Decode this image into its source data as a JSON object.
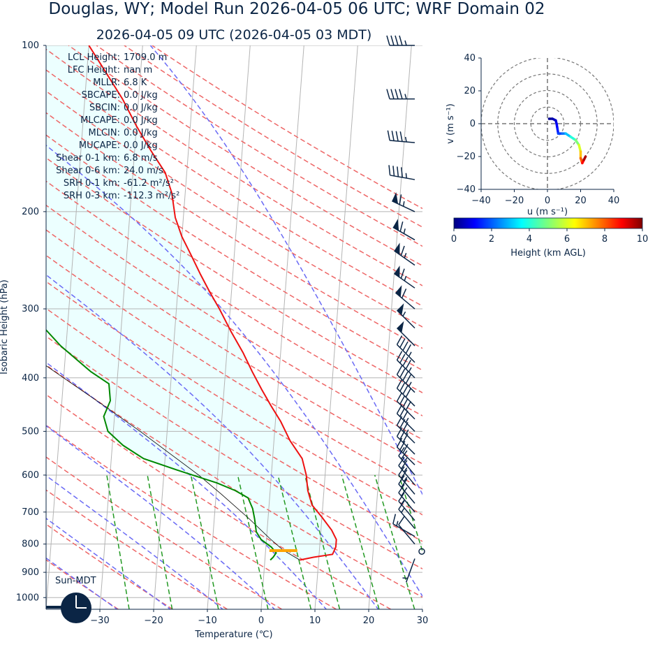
{
  "title": "Douglas, WY; Model Run 2026-04-05 06 UTC; WRF Domain 02",
  "subtitle": "2026-04-05 09 UTC  (2026-04-05 03 MDT)",
  "stats": [
    {
      "label": "LCL Height:",
      "value": "1709.0 m"
    },
    {
      "label": "LFC Height:",
      "value": "nan m"
    },
    {
      "label": "MLLR:",
      "value": "6.8 K"
    },
    {
      "label": "SBCAPE:",
      "value": "0.0 J/kg"
    },
    {
      "label": "SBCIN:",
      "value": "0.0 J/kg"
    },
    {
      "label": "MLCAPE:",
      "value": "0.0 J/kg"
    },
    {
      "label": "MLCIN:",
      "value": "0.0 J/kg"
    },
    {
      "label": "MUCAPE:",
      "value": "0.0 J/kg"
    },
    {
      "label": "Shear 0-1 km:",
      "value": "6.8 m/s"
    },
    {
      "label": "Shear 0-6 km:",
      "value": "24.0 m/s"
    },
    {
      "label": "SRH 0-1 km:",
      "value": "-61.2 m²/s²"
    },
    {
      "label": "SRH 0-3 km:",
      "value": "-112.3 m²/s²"
    }
  ],
  "sun_label": "Sun-MDT",
  "chart_data": [
    {
      "type": "line",
      "name": "skew-t",
      "xlabel": "Temperature (℃)",
      "ylabel": "Isobaric Height (hPa)",
      "xlim": [
        -40,
        30
      ],
      "ylim": [
        1050,
        100
      ],
      "y_scale": "log",
      "skew_per_decade": 60,
      "x_ticks": [
        -30,
        -20,
        -10,
        0,
        10,
        20,
        30
      ],
      "y_ticks": [
        100,
        200,
        300,
        400,
        500,
        600,
        700,
        800,
        900,
        1000
      ],
      "grid": true,
      "colors": {
        "temperature": "#ee1111",
        "dewpoint": "#008800",
        "parcel": "#000000",
        "cape_fill": "#ecffff",
        "lcl": "#ffa500",
        "dry_adiabat": "#ee6666",
        "moist_adiabat": "#6a6af5",
        "mixing_ratio": "#229922",
        "isotherm": "#b4b4b4"
      },
      "temperature": [
        {
          "p": 855,
          "t": 6.5
        },
        {
          "p": 845,
          "t": 9
        },
        {
          "p": 835,
          "t": 12.5
        },
        {
          "p": 810,
          "t": 13
        },
        {
          "p": 785,
          "t": 13
        },
        {
          "p": 755,
          "t": 12
        },
        {
          "p": 715,
          "t": 10
        },
        {
          "p": 680,
          "t": 8
        },
        {
          "p": 640,
          "t": 7
        },
        {
          "p": 600,
          "t": 6.5
        },
        {
          "p": 560,
          "t": 5.5
        },
        {
          "p": 520,
          "t": 3
        },
        {
          "p": 480,
          "t": 1
        },
        {
          "p": 450,
          "t": -1
        },
        {
          "p": 420,
          "t": -3
        },
        {
          "p": 390,
          "t": -5
        },
        {
          "p": 360,
          "t": -7
        },
        {
          "p": 330,
          "t": -9.5
        },
        {
          "p": 300,
          "t": -12
        },
        {
          "p": 280,
          "t": -14
        },
        {
          "p": 260,
          "t": -16
        },
        {
          "p": 240,
          "t": -18
        },
        {
          "p": 222,
          "t": -20
        },
        {
          "p": 205,
          "t": -21.5
        },
        {
          "p": 185,
          "t": -22.5
        },
        {
          "p": 170,
          "t": -24
        },
        {
          "p": 155,
          "t": -27
        },
        {
          "p": 140,
          "t": -30
        },
        {
          "p": 125,
          "t": -33
        },
        {
          "p": 110,
          "t": -37
        },
        {
          "p": 100,
          "t": -40
        }
      ],
      "dewpoint": [
        {
          "p": 855,
          "t": 1
        },
        {
          "p": 845,
          "t": 1.5
        },
        {
          "p": 830,
          "t": 2
        },
        {
          "p": 810,
          "t": 1
        },
        {
          "p": 785,
          "t": -1
        },
        {
          "p": 760,
          "t": -2
        },
        {
          "p": 720,
          "t": -2.5
        },
        {
          "p": 690,
          "t": -3
        },
        {
          "p": 660,
          "t": -4
        },
        {
          "p": 640,
          "t": -6.5
        },
        {
          "p": 620,
          "t": -10
        },
        {
          "p": 590,
          "t": -17
        },
        {
          "p": 560,
          "t": -24
        },
        {
          "p": 530,
          "t": -28
        },
        {
          "p": 500,
          "t": -31
        },
        {
          "p": 470,
          "t": -32
        },
        {
          "p": 440,
          "t": -31
        },
        {
          "p": 410,
          "t": -31.5
        },
        {
          "p": 390,
          "t": -35
        },
        {
          "p": 350,
          "t": -41
        },
        {
          "p": 320,
          "t": -45
        },
        {
          "p": 290,
          "t": -46.5
        },
        {
          "p": 260,
          "t": -48.5
        },
        {
          "p": 230,
          "t": -51.5
        },
        {
          "p": 210,
          "t": -53.5
        },
        {
          "p": 190,
          "t": -53.5
        },
        {
          "p": 170,
          "t": -55
        },
        {
          "p": 155,
          "t": -57.5
        },
        {
          "p": 140,
          "t": -59.5
        },
        {
          "p": 125,
          "t": -61.5
        },
        {
          "p": 110,
          "t": -64.5
        },
        {
          "p": 100,
          "t": -67
        }
      ],
      "parcel": [
        {
          "p": 855,
          "t": 6.5
        },
        {
          "p": 820,
          "t": 3.2
        },
        {
          "p": 780,
          "t": 0.5
        },
        {
          "p": 720,
          "t": -3.5
        },
        {
          "p": 650,
          "t": -9
        },
        {
          "p": 600,
          "t": -13.5
        },
        {
          "p": 550,
          "t": -19
        },
        {
          "p": 500,
          "t": -25
        },
        {
          "p": 450,
          "t": -32
        },
        {
          "p": 400,
          "t": -40
        },
        {
          "p": 350,
          "t": -49
        },
        {
          "p": 300,
          "t": -59
        },
        {
          "p": 260,
          "t": -68
        }
      ],
      "lcl_p": 822,
      "lcl_t": 3.3,
      "wind_barbs": [
        {
          "p": 100,
          "speed_kt": 45,
          "dir": 270
        },
        {
          "p": 125,
          "speed_kt": 45,
          "dir": 270
        },
        {
          "p": 150,
          "speed_kt": 45,
          "dir": 275
        },
        {
          "p": 175,
          "speed_kt": 45,
          "dir": 280
        },
        {
          "p": 200,
          "speed_kt": 65,
          "dir": 295
        },
        {
          "p": 225,
          "speed_kt": 65,
          "dir": 300
        },
        {
          "p": 250,
          "speed_kt": 65,
          "dir": 305
        },
        {
          "p": 275,
          "speed_kt": 65,
          "dir": 305
        },
        {
          "p": 300,
          "speed_kt": 60,
          "dir": 310
        },
        {
          "p": 325,
          "speed_kt": 55,
          "dir": 315
        },
        {
          "p": 350,
          "speed_kt": 50,
          "dir": 315
        },
        {
          "p": 375,
          "speed_kt": 45,
          "dir": 315
        },
        {
          "p": 400,
          "speed_kt": 45,
          "dir": 315
        },
        {
          "p": 425,
          "speed_kt": 45,
          "dir": 315
        },
        {
          "p": 450,
          "speed_kt": 40,
          "dir": 315
        },
        {
          "p": 475,
          "speed_kt": 40,
          "dir": 315
        },
        {
          "p": 500,
          "speed_kt": 35,
          "dir": 315
        },
        {
          "p": 525,
          "speed_kt": 35,
          "dir": 315
        },
        {
          "p": 550,
          "speed_kt": 30,
          "dir": 315
        },
        {
          "p": 575,
          "speed_kt": 30,
          "dir": 315
        },
        {
          "p": 600,
          "speed_kt": 25,
          "dir": 320
        },
        {
          "p": 625,
          "speed_kt": 25,
          "dir": 320
        },
        {
          "p": 650,
          "speed_kt": 25,
          "dir": 320
        },
        {
          "p": 675,
          "speed_kt": 20,
          "dir": 320
        },
        {
          "p": 700,
          "speed_kt": 20,
          "dir": 320
        },
        {
          "p": 725,
          "speed_kt": 15,
          "dir": 320
        },
        {
          "p": 750,
          "speed_kt": 15,
          "dir": 320
        },
        {
          "p": 775,
          "speed_kt": 15,
          "dir": 300
        },
        {
          "p": 800,
          "speed_kt": 10,
          "dir": 320
        },
        {
          "p": 825,
          "speed_kt": 0,
          "dir": 0
        },
        {
          "p": 850,
          "speed_kt": 5,
          "dir": 200
        }
      ]
    },
    {
      "type": "line",
      "name": "hodograph",
      "xlabel": "u (m s⁻¹)",
      "ylabel": "v (m s⁻¹)",
      "xlim": [
        -40,
        40
      ],
      "ylim": [
        -40,
        40
      ],
      "x_ticks": [
        -40,
        -20,
        0,
        20,
        40
      ],
      "y_ticks": [
        -40,
        -20,
        0,
        20,
        40
      ],
      "rings": [
        10,
        20,
        30,
        40
      ],
      "points": [
        {
          "u": 1,
          "v": 3,
          "z": 0.0
        },
        {
          "u": 3,
          "v": 3,
          "z": 0.3
        },
        {
          "u": 5,
          "v": 2,
          "z": 0.6
        },
        {
          "u": 5.5,
          "v": 0,
          "z": 0.9
        },
        {
          "u": 6,
          "v": -3,
          "z": 1.2
        },
        {
          "u": 6.5,
          "v": -6,
          "z": 1.5
        },
        {
          "u": 9,
          "v": -6,
          "z": 2.0
        },
        {
          "u": 11,
          "v": -6,
          "z": 2.5
        },
        {
          "u": 14,
          "v": -8,
          "z": 3.5
        },
        {
          "u": 17,
          "v": -10,
          "z": 4.5
        },
        {
          "u": 19,
          "v": -13,
          "z": 5.5
        },
        {
          "u": 20,
          "v": -17,
          "z": 6.5
        },
        {
          "u": 20,
          "v": -21,
          "z": 7.5
        },
        {
          "u": 21,
          "v": -24,
          "z": 8.5
        },
        {
          "u": 22,
          "v": -22,
          "z": 9.2
        },
        {
          "u": 23,
          "v": -20,
          "z": 10.0
        }
      ]
    }
  ],
  "colorbar": {
    "label": "Height (km AGL)",
    "ticks": [
      0,
      2,
      4,
      6,
      8,
      10
    ],
    "min": 0,
    "max": 10
  }
}
